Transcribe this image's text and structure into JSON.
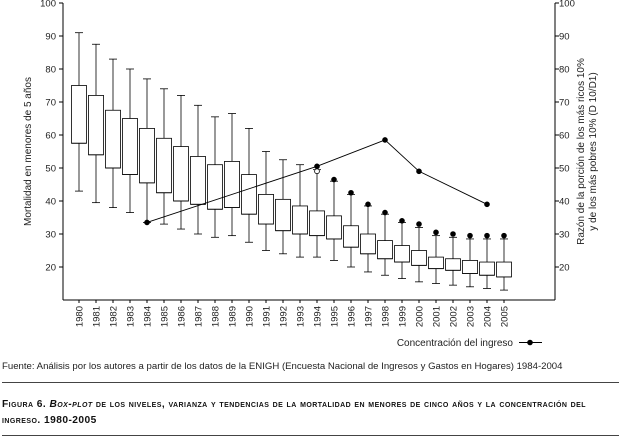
{
  "chart_data": {
    "type": "box",
    "years": [
      "1980",
      "1981",
      "1982",
      "1983",
      "1984",
      "1985",
      "1986",
      "1987",
      "1988",
      "1989",
      "1990",
      "1991",
      "1992",
      "1993",
      "1994",
      "1995",
      "1996",
      "1997",
      "1998",
      "1999",
      "2000",
      "2001",
      "2002",
      "2003",
      "2004",
      "2005"
    ],
    "boxes": [
      {
        "wlo": 43,
        "q1": 57.5,
        "med": 57.5,
        "q3": 75,
        "whi": 91
      },
      {
        "wlo": 39.5,
        "q1": 54,
        "med": 54,
        "q3": 72,
        "whi": 87.5
      },
      {
        "wlo": 38,
        "q1": 50,
        "med": 50,
        "q3": 67.5,
        "whi": 83
      },
      {
        "wlo": 36.5,
        "q1": 48,
        "med": 48,
        "q3": 65,
        "whi": 80
      },
      {
        "wlo": 33.5,
        "q1": 45.5,
        "med": 45.5,
        "q3": 62,
        "whi": 77
      },
      {
        "wlo": 33,
        "q1": 42.5,
        "med": 42.5,
        "q3": 59,
        "whi": 74
      },
      {
        "wlo": 31.5,
        "q1": 40,
        "med": 40,
        "q3": 56.5,
        "whi": 72
      },
      {
        "wlo": 30,
        "q1": 39,
        "med": 39,
        "q3": 53.5,
        "whi": 69
      },
      {
        "wlo": 29,
        "q1": 37.5,
        "med": 37.5,
        "q3": 51,
        "whi": 65.5
      },
      {
        "wlo": 29.5,
        "q1": 38,
        "med": 38,
        "q3": 52,
        "whi": 66.5
      },
      {
        "wlo": 27.5,
        "q1": 36,
        "med": 36,
        "q3": 48,
        "whi": 62
      },
      {
        "wlo": 25,
        "q1": 33,
        "med": 33,
        "q3": 42,
        "whi": 55
      },
      {
        "wlo": 24,
        "q1": 31,
        "med": 31,
        "q3": 40.5,
        "whi": 52.5
      },
      {
        "wlo": 23,
        "q1": 30,
        "med": 30,
        "q3": 38.5,
        "whi": 51
      },
      {
        "wlo": 23,
        "q1": 29.5,
        "med": 29.5,
        "q3": 37,
        "whi": 49.5
      },
      {
        "wlo": 22,
        "q1": 28.5,
        "med": 28.5,
        "q3": 35.5,
        "whi": 46
      },
      {
        "wlo": 20,
        "q1": 26,
        "med": 26,
        "q3": 32.5,
        "whi": 42
      },
      {
        "wlo": 18.5,
        "q1": 24,
        "med": 24,
        "q3": 30,
        "whi": 38.5
      },
      {
        "wlo": 17.5,
        "q1": 22.5,
        "med": 22.5,
        "q3": 28,
        "whi": 36
      },
      {
        "wlo": 16.5,
        "q1": 21.5,
        "med": 21.5,
        "q3": 26.5,
        "whi": 33.5
      },
      {
        "wlo": 15.5,
        "q1": 20.5,
        "med": 20.5,
        "q3": 25,
        "whi": 32
      },
      {
        "wlo": 15,
        "q1": 19.5,
        "med": 19.5,
        "q3": 23,
        "whi": 29.5
      },
      {
        "wlo": 14.5,
        "q1": 19,
        "med": 19,
        "q3": 22.5,
        "whi": 29
      },
      {
        "wlo": 14,
        "q1": 18,
        "med": 18,
        "q3": 22,
        "whi": 28.5
      },
      {
        "wlo": 13.5,
        "q1": 17.5,
        "med": 17.5,
        "q3": 21.5,
        "whi": 28.5
      },
      {
        "wlo": 13,
        "q1": 17,
        "med": 17,
        "q3": 21.5,
        "whi": 28.5
      }
    ],
    "line_series": {
      "name": "Concentración del ingreso",
      "points": [
        {
          "year": "1984",
          "value": 33.5
        },
        {
          "year": "1994",
          "value": 50.5
        },
        {
          "year": "1998",
          "value": 58.5
        },
        {
          "year": "2000",
          "value": 49
        },
        {
          "year": "2004",
          "value": 39
        }
      ]
    },
    "outliers": [
      {
        "year": "1994",
        "value": 49,
        "filled": false
      },
      {
        "year": "1995",
        "value": 46.5,
        "filled": true
      },
      {
        "year": "1996",
        "value": 42.5,
        "filled": true
      },
      {
        "year": "1997",
        "value": 39,
        "filled": true
      },
      {
        "year": "1998",
        "value": 36.5,
        "filled": true
      },
      {
        "year": "1999",
        "value": 34,
        "filled": true
      },
      {
        "year": "2000",
        "value": 33,
        "filled": true
      },
      {
        "year": "2001",
        "value": 30.5,
        "filled": true
      },
      {
        "year": "2002",
        "value": 30,
        "filled": true
      },
      {
        "year": "2003",
        "value": 29.5,
        "filled": true
      },
      {
        "year": "2004",
        "value": 29.5,
        "filled": true
      },
      {
        "year": "2005",
        "value": 29.5,
        "filled": true
      }
    ],
    "ylim": [
      10,
      100
    ],
    "yticks": [
      "100",
      "90",
      "80",
      "70",
      "60",
      "50",
      "40",
      "30",
      "20"
    ],
    "ylabel_left": "Mortalidad en menores de 5 años",
    "ylabel_right_line1": "Razón de la porción de los más ricos 10%",
    "ylabel_right_line2": "y de los más pobres 10% (D 10/D1)",
    "legend_placement": "bottom-right"
  },
  "source": "Fuente: Análisis por los autores a partir de los datos de la ENIGH (Encuesta Nacional de Ingresos y Gastos en Hogares) 1984-2004",
  "caption": {
    "label": "Figura 6.",
    "italic_part": "Box-plot",
    "rest": "de los niveles, varianza y tendencias de la mortalidad en menores de cinco años y la concentración del ingreso.",
    "years": "1980-2005"
  }
}
